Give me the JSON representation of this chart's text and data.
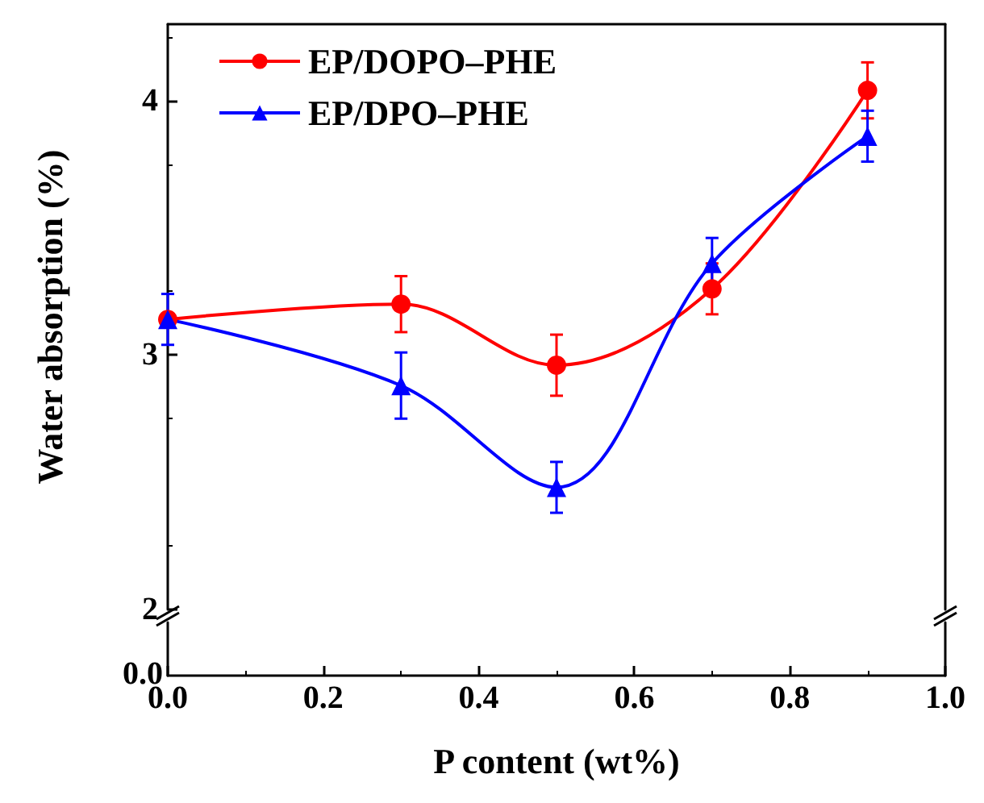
{
  "chart_data": {
    "type": "line",
    "ylabel": "Water absorption (%)",
    "xlabel": "P content (wt%)",
    "annotations": [
      "0.0"
    ],
    "x": [
      0,
      0.3,
      0.5,
      0.7,
      0.9
    ],
    "xlim": [
      0,
      1
    ],
    "xticks": [
      {
        "value": 0,
        "label": "0.0"
      },
      {
        "value": 0.2,
        "label": "0.2"
      },
      {
        "value": 0.4,
        "label": "0.4"
      },
      {
        "value": 0.6,
        "label": "0.6"
      },
      {
        "value": 0.8,
        "label": "0.8"
      },
      {
        "value": 1,
        "label": "1.0"
      }
    ],
    "ylim": [
      2,
      4.3
    ],
    "yticks": [
      2,
      3,
      4
    ],
    "legend": "top left",
    "line_style": "solid",
    "grid": false,
    "series": [
      {
        "name": "EP/DOPO–PHE",
        "color": "#ff0000",
        "marker": "circle",
        "values": [
          3.14,
          3.2,
          2.96,
          3.26,
          4.04
        ],
        "errors": [
          null,
          0.11,
          0.12,
          0.1,
          0.11
        ]
      },
      {
        "name": "EP/DPO–PHE",
        "color": "#0000ff",
        "marker": "triangle",
        "values": [
          3.14,
          2.88,
          2.48,
          3.36,
          3.86
        ],
        "errors": [
          0.1,
          0.13,
          0.1,
          0.1,
          0.1
        ]
      }
    ]
  }
}
